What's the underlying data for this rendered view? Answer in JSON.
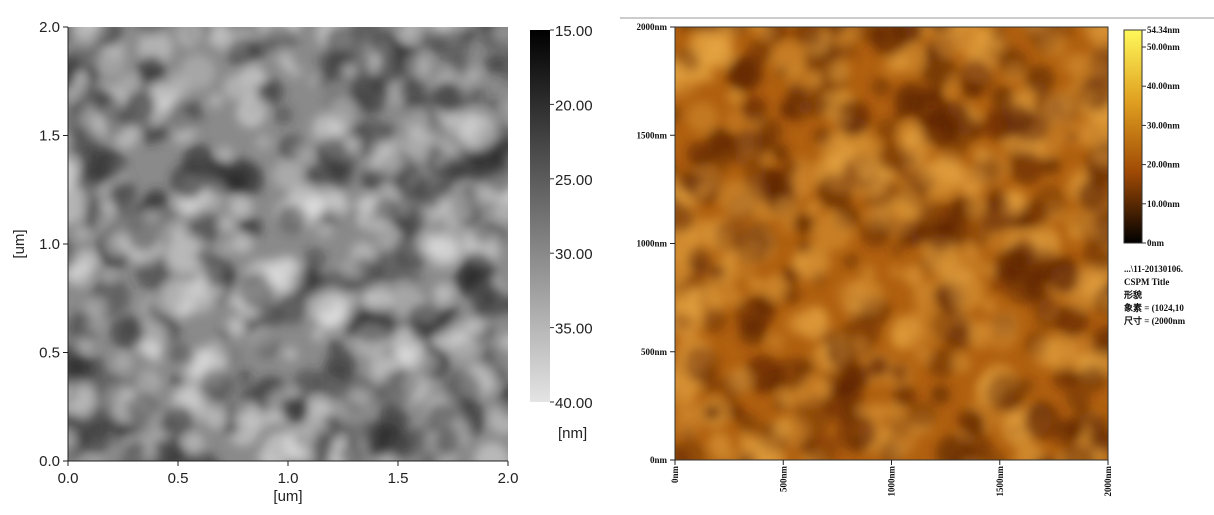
{
  "chart_data": [
    {
      "type": "heatmap",
      "xlabel": "[um]",
      "ylabel": "[um]",
      "xlim": [
        0,
        2
      ],
      "ylim": [
        0,
        2
      ],
      "xticks": [
        {
          "value": 0,
          "label": "0.0"
        },
        0.5,
        {
          "value": 1,
          "label": "1.0"
        },
        1.5,
        {
          "value": 2,
          "label": "2.0"
        }
      ],
      "yticks": [
        {
          "value": 0,
          "label": "0.0"
        },
        0.5,
        {
          "value": 1,
          "label": "1.0"
        },
        1.5,
        {
          "value": 2,
          "label": "2.0"
        }
      ],
      "colorbar": {
        "lim": [
          15,
          40
        ],
        "unit": "[nm]",
        "colormap": [
          "#000000",
          "#e4e4e4"
        ],
        "ticks": [
          {
            "value": 15,
            "label": "15.00"
          },
          {
            "value": 20,
            "label": "20.00"
          },
          {
            "value": 25,
            "label": "25.00"
          },
          {
            "value": 30,
            "label": "30.00"
          },
          {
            "value": 35,
            "label": "35.00"
          },
          {
            "value": 40,
            "label": "40.00"
          }
        ]
      },
      "colors": {
        "base": "#8a8a8a",
        "light": "#e6e6e6",
        "dark": "#2a2a2a"
      }
    },
    {
      "type": "heatmap",
      "xlim": [
        0,
        2000
      ],
      "ylim": [
        0,
        2000
      ],
      "xticks": [
        {
          "value": 0,
          "label": "0nm"
        },
        {
          "value": 500,
          "label": "500nm"
        },
        {
          "value": 1000,
          "label": "1000nm"
        },
        {
          "value": 1500,
          "label": "1500nm"
        },
        {
          "value": 2000,
          "label": "2000nm"
        }
      ],
      "yticks": [
        {
          "value": 0,
          "label": "0nm"
        },
        {
          "value": 500,
          "label": "500nm"
        },
        {
          "value": 1000,
          "label": "1000nm"
        },
        {
          "value": 1500,
          "label": "1500nm"
        },
        {
          "value": 2000,
          "label": "2000nm"
        }
      ],
      "colorbar": {
        "lim": [
          0,
          54.34
        ],
        "colormap": [
          "#fff95a",
          "#e0a020",
          "#a04a05",
          "#000000"
        ],
        "ticks": [
          {
            "value": 0,
            "label": "0nm"
          },
          {
            "value": 10,
            "label": "10.00nm"
          },
          {
            "value": 20,
            "label": "20.00nm"
          },
          {
            "value": 30,
            "label": "30.00nm"
          },
          {
            "value": 40,
            "label": "40.00nm"
          },
          {
            "value": 50,
            "label": "50.00nm"
          },
          {
            "value": 54.34,
            "label": "54.34nm"
          }
        ]
      },
      "annotations": [
        "...\\11-20130106.",
        "CSPM Title",
        "形貌",
        "象素 = (1024,10",
        "尺寸 = (2000nm"
      ],
      "colors": {
        "base": "#b0600f",
        "light": "#e8a845",
        "dark": "#5a2203"
      }
    }
  ]
}
